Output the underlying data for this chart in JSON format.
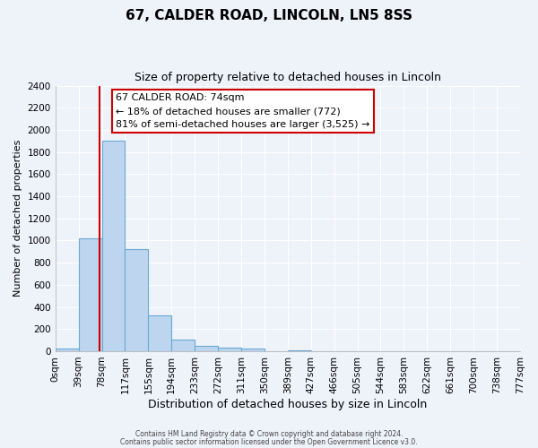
{
  "title": "67, CALDER ROAD, LINCOLN, LN5 8SS",
  "subtitle": "Size of property relative to detached houses in Lincoln",
  "xlabel": "Distribution of detached houses by size in Lincoln",
  "ylabel": "Number of detached properties",
  "bin_labels": [
    "0sqm",
    "39sqm",
    "78sqm",
    "117sqm",
    "155sqm",
    "194sqm",
    "233sqm",
    "272sqm",
    "311sqm",
    "350sqm",
    "389sqm",
    "427sqm",
    "466sqm",
    "505sqm",
    "544sqm",
    "583sqm",
    "622sqm",
    "661sqm",
    "700sqm",
    "738sqm",
    "777sqm"
  ],
  "bar_values": [
    20,
    1020,
    1900,
    920,
    320,
    105,
    50,
    30,
    20,
    0,
    10,
    0,
    0,
    0,
    0,
    0,
    0,
    0,
    0,
    0
  ],
  "bar_color": "#bdd5ee",
  "bar_edge_color": "#6aaad4",
  "property_line_x": 74,
  "bin_width": 39,
  "ylim": [
    0,
    2400
  ],
  "yticks": [
    0,
    200,
    400,
    600,
    800,
    1000,
    1200,
    1400,
    1600,
    1800,
    2000,
    2200,
    2400
  ],
  "annotation_box_text": "67 CALDER ROAD: 74sqm\n← 18% of detached houses are smaller (772)\n81% of semi-detached houses are larger (3,525) →",
  "footer_line1": "Contains HM Land Registry data © Crown copyright and database right 2024.",
  "footer_line2": "Contains public sector information licensed under the Open Government Licence v3.0.",
  "bg_color": "#eef2f9",
  "grid_color": "#ffffff",
  "annotation_box_color": "#ffffff",
  "annotation_box_edge": "#cc0000",
  "red_line_color": "#cc0000",
  "title_fontsize": 11,
  "subtitle_fontsize": 9
}
